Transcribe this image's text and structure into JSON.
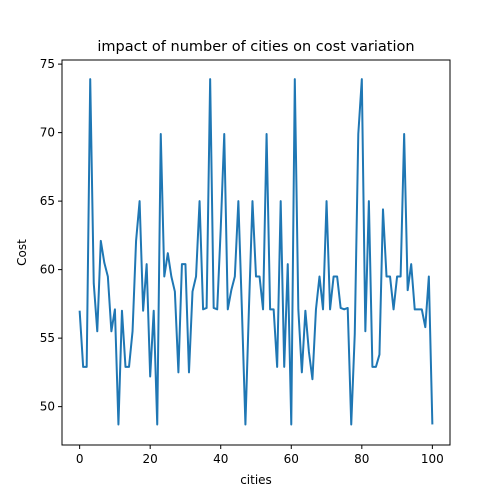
{
  "chart_data": {
    "type": "line",
    "title": "impact of number of cities on cost variation",
    "xlabel": "cities",
    "ylabel": "Cost",
    "xlim": [
      -5,
      105
    ],
    "ylim": [
      47.2,
      75.3
    ],
    "xticks": [
      0,
      20,
      40,
      60,
      80,
      100
    ],
    "yticks": [
      50,
      55,
      60,
      65,
      70,
      75
    ],
    "grid": false,
    "color": "#1f77b4",
    "series": [
      {
        "x": [
          0,
          1,
          2,
          3,
          4,
          5,
          6,
          7,
          8,
          9,
          10,
          11,
          12,
          13,
          14,
          15,
          16,
          17,
          18,
          19,
          20,
          21,
          22,
          23,
          24,
          25,
          26,
          27,
          28,
          29,
          30,
          31,
          32,
          33,
          34,
          35,
          36,
          37,
          38,
          39,
          40,
          41,
          42,
          43,
          44,
          45,
          46,
          47,
          48,
          49,
          50,
          51,
          52,
          53,
          54,
          55,
          56,
          57,
          58,
          59,
          60,
          61,
          62,
          63,
          64,
          65,
          66,
          67,
          68,
          69,
          70,
          71,
          72,
          73,
          74,
          75,
          76,
          77,
          78,
          79,
          80,
          81,
          82,
          83,
          84,
          85,
          86,
          87,
          88,
          89,
          90,
          91,
          92,
          93,
          94,
          95,
          96,
          97,
          98,
          99,
          100
        ],
        "values": [
          57.0,
          52.9,
          52.9,
          73.9,
          59.0,
          55.5,
          62.1,
          60.5,
          59.5,
          55.5,
          57.1,
          48.7,
          57.0,
          52.9,
          52.9,
          55.5,
          62.1,
          65.0,
          57.0,
          60.4,
          52.2,
          57.0,
          48.7,
          69.9,
          59.5,
          61.2,
          59.5,
          58.4,
          52.5,
          60.4,
          60.4,
          52.5,
          58.4,
          59.5,
          65.0,
          57.1,
          57.2,
          73.9,
          57.2,
          57.1,
          63.0,
          69.9,
          57.1,
          58.5,
          59.5,
          65.0,
          57.1,
          48.7,
          57.2,
          65.0,
          59.5,
          59.5,
          57.1,
          69.9,
          57.1,
          57.1,
          52.9,
          65.0,
          52.9,
          60.4,
          48.7,
          73.9,
          57.1,
          52.5,
          57.0,
          54.0,
          52.0,
          57.1,
          59.5,
          57.1,
          65.0,
          57.1,
          59.5,
          59.5,
          57.2,
          57.1,
          57.2,
          48.7,
          55.3,
          69.9,
          73.9,
          55.5,
          65.0,
          52.9,
          52.9,
          53.8,
          64.4,
          59.5,
          59.5,
          57.1,
          59.5,
          59.5,
          69.9,
          58.5,
          60.4,
          57.1,
          57.1,
          57.1,
          55.8,
          59.5,
          48.7
        ]
      }
    ]
  }
}
